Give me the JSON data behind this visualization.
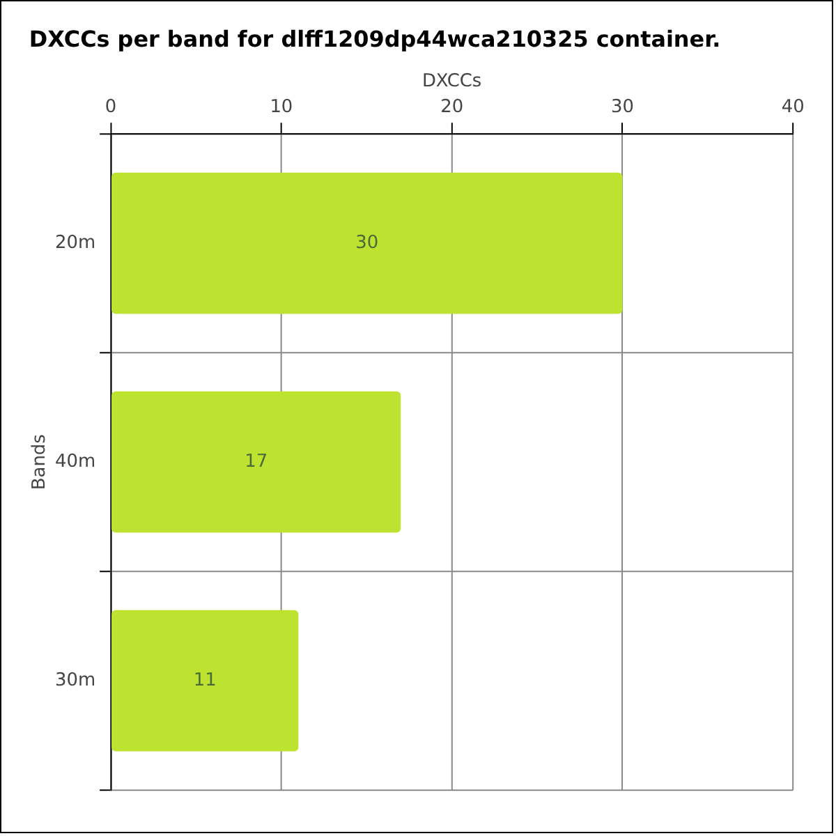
{
  "chart_data": {
    "type": "bar",
    "orientation": "horizontal",
    "title": "DXCCs per band for dlff1209dp44wca210325 container.",
    "xlabel": "DXCCs",
    "ylabel": "Bands",
    "categories": [
      "20m",
      "40m",
      "30m"
    ],
    "values": [
      30,
      17,
      11
    ],
    "color": "#bde22f",
    "xlim": [
      0,
      40
    ],
    "xticks": [
      0,
      10,
      20,
      30,
      40
    ],
    "grid": true,
    "data_labels": true
  }
}
